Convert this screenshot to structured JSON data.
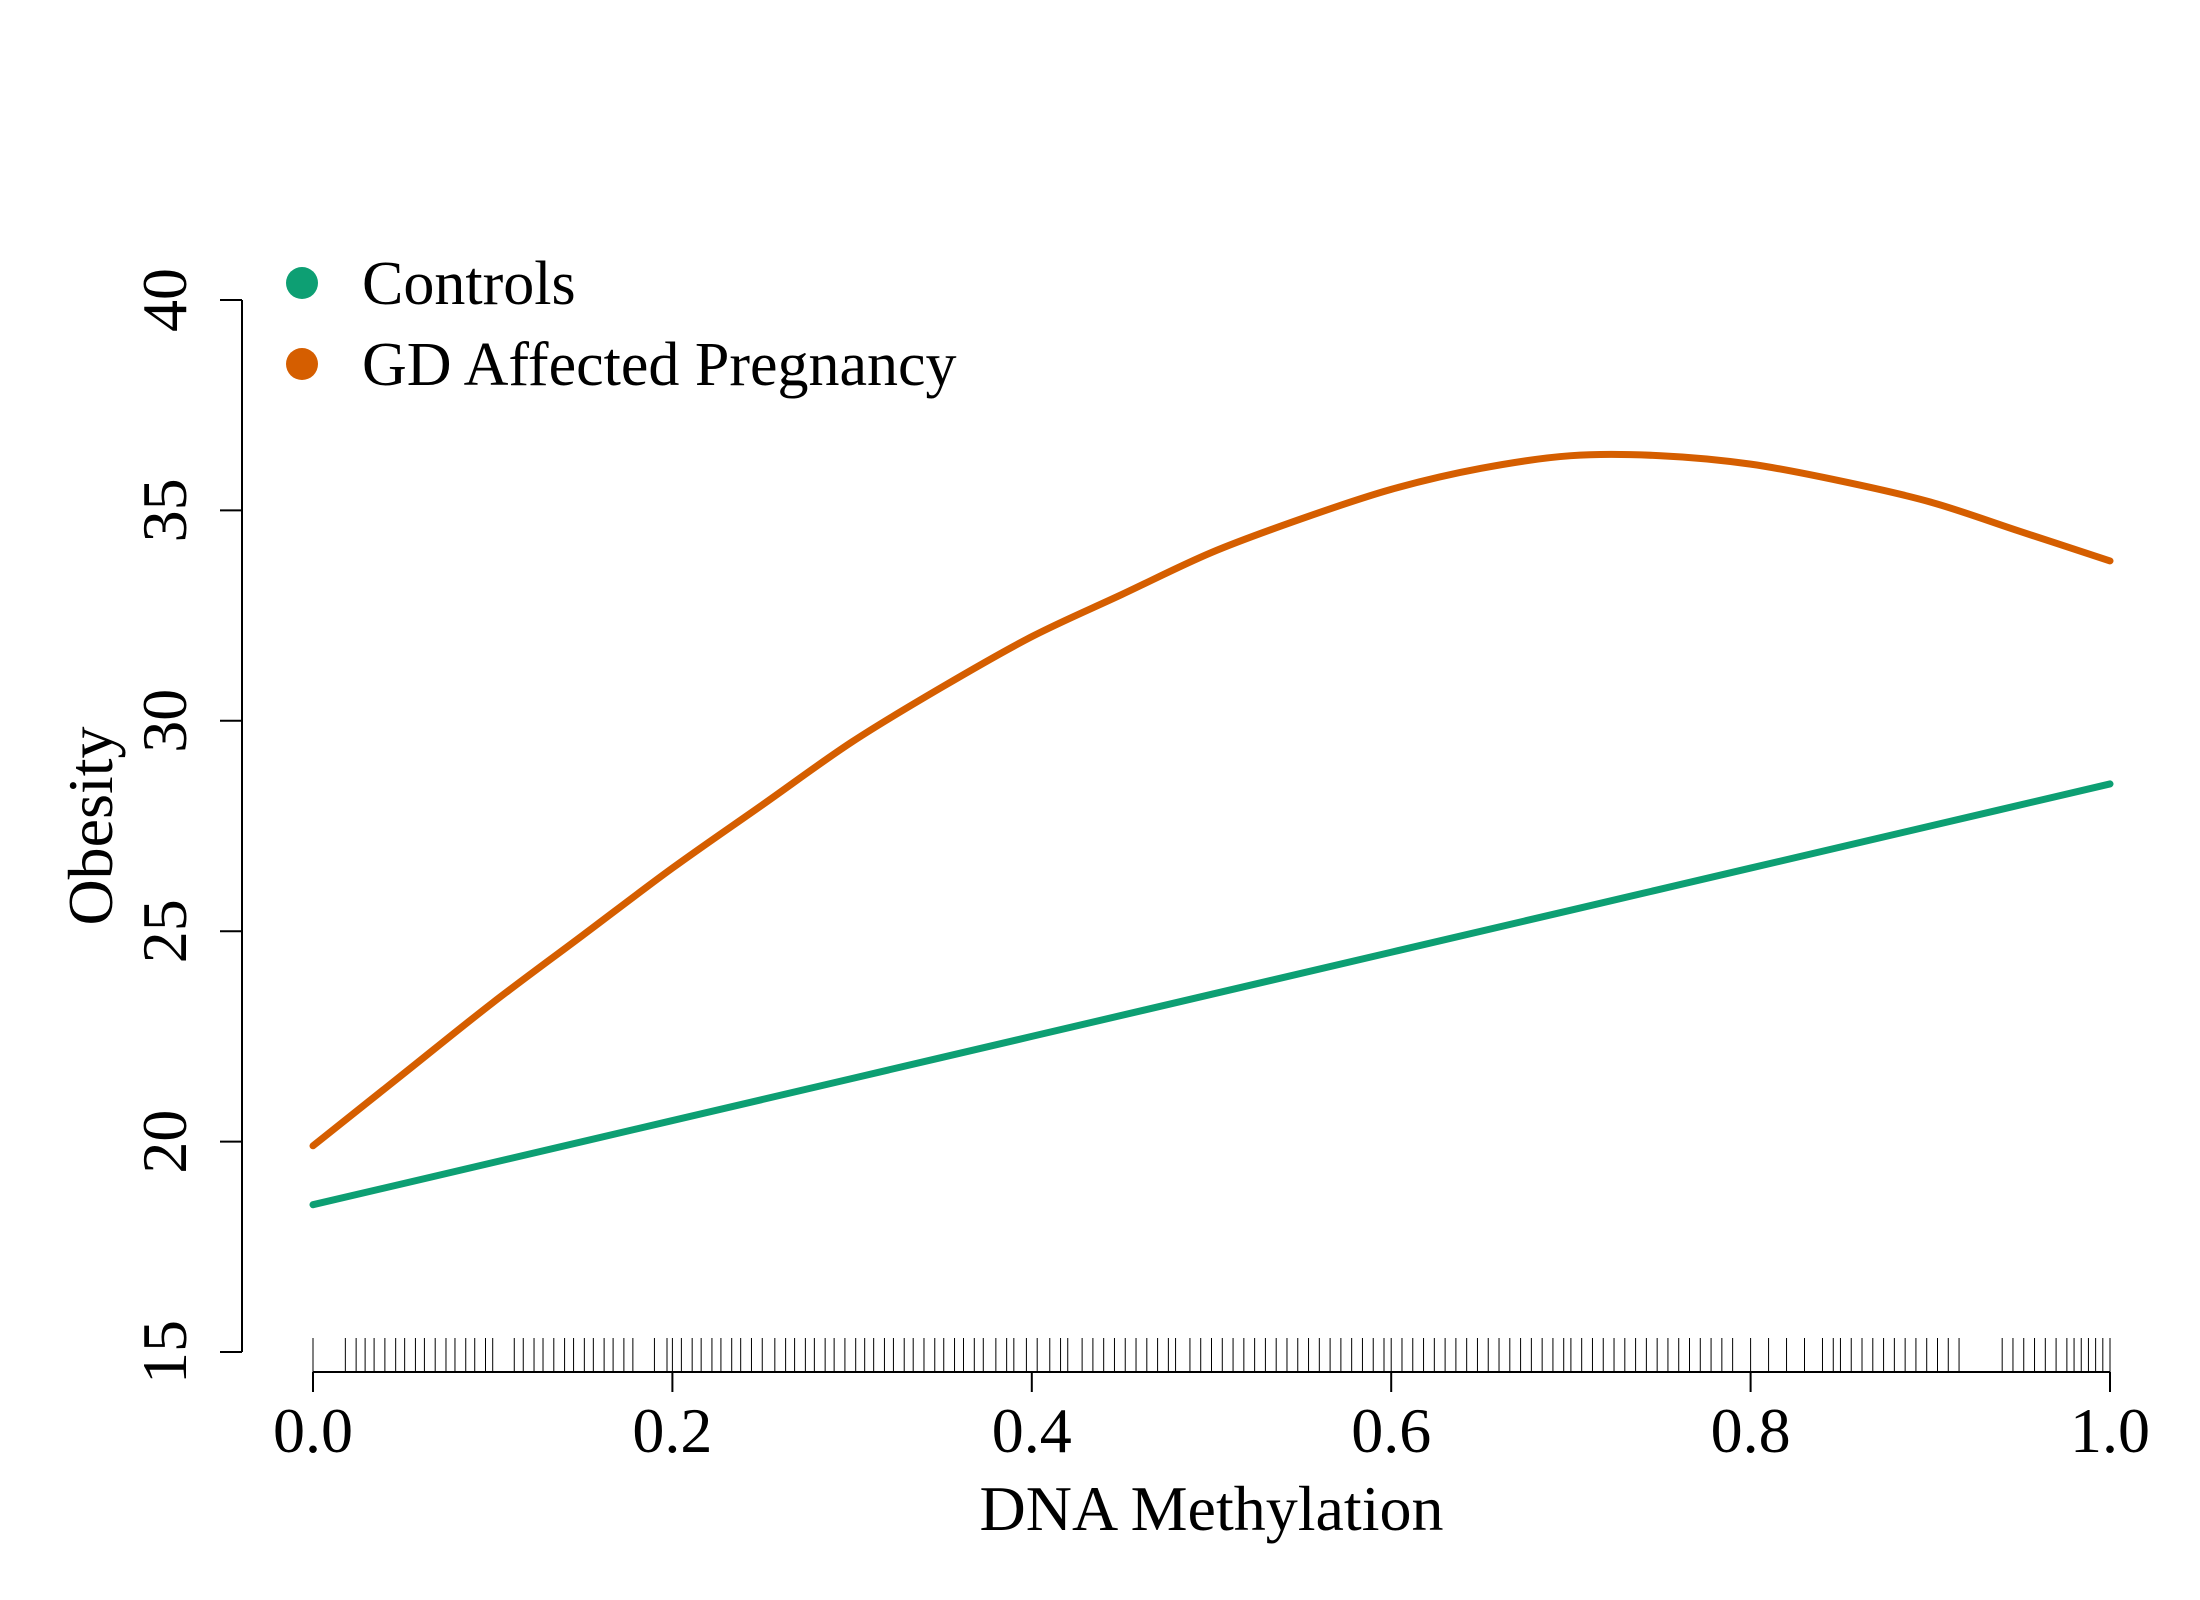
{
  "chart_data": {
    "type": "line",
    "xlabel": "DNA Methylation",
    "ylabel": "Obesity",
    "xlim": [
      0.0,
      1.0
    ],
    "ylim": [
      15,
      40
    ],
    "xticks": [
      "0.0",
      "0.2",
      "0.4",
      "0.6",
      "0.8",
      "1.0"
    ],
    "yticks": [
      "15",
      "20",
      "25",
      "30",
      "35",
      "40"
    ],
    "legend_position": "top-left",
    "series": [
      {
        "name": "Controls",
        "color": "#0D9F73",
        "x": [
          0.0,
          0.1,
          0.2,
          0.3,
          0.4,
          0.5,
          0.6,
          0.7,
          0.8,
          0.9,
          1.0
        ],
        "y": [
          18.5,
          19.5,
          20.5,
          21.5,
          22.5,
          23.5,
          24.5,
          25.5,
          26.5,
          27.5,
          28.5
        ]
      },
      {
        "name": "GD Affected Pregnancy",
        "color": "#D55E00",
        "x": [
          0.0,
          0.05,
          0.1,
          0.15,
          0.2,
          0.25,
          0.3,
          0.35,
          0.4,
          0.45,
          0.5,
          0.55,
          0.6,
          0.65,
          0.7,
          0.75,
          0.8,
          0.85,
          0.9,
          0.95,
          1.0
        ],
        "y": [
          19.9,
          21.6,
          23.3,
          24.9,
          26.5,
          28.0,
          29.5,
          30.8,
          32.0,
          33.0,
          34.0,
          34.8,
          35.5,
          36.0,
          36.3,
          36.3,
          36.1,
          35.7,
          35.2,
          34.5,
          33.8
        ]
      }
    ],
    "rug": [
      0.0,
      0.018,
      0.024,
      0.029,
      0.034,
      0.04,
      0.046,
      0.051,
      0.057,
      0.062,
      0.068,
      0.074,
      0.079,
      0.085,
      0.09,
      0.096,
      0.1,
      0.112,
      0.117,
      0.123,
      0.128,
      0.134,
      0.14,
      0.145,
      0.151,
      0.156,
      0.162,
      0.167,
      0.173,
      0.178,
      0.19,
      0.197,
      0.2,
      0.205,
      0.211,
      0.216,
      0.222,
      0.227,
      0.233,
      0.238,
      0.244,
      0.25,
      0.257,
      0.263,
      0.268,
      0.274,
      0.279,
      0.285,
      0.29,
      0.296,
      0.302,
      0.307,
      0.312,
      0.318,
      0.323,
      0.329,
      0.334,
      0.34,
      0.346,
      0.351,
      0.357,
      0.362,
      0.368,
      0.373,
      0.38,
      0.386,
      0.39,
      0.397,
      0.403,
      0.41,
      0.416,
      0.42,
      0.428,
      0.434,
      0.44,
      0.446,
      0.452,
      0.458,
      0.464,
      0.47,
      0.476,
      0.48,
      0.488,
      0.494,
      0.5,
      0.506,
      0.512,
      0.518,
      0.524,
      0.53,
      0.536,
      0.542,
      0.548,
      0.554,
      0.56,
      0.566,
      0.572,
      0.578,
      0.584,
      0.59,
      0.596,
      0.6,
      0.606,
      0.612,
      0.618,
      0.624,
      0.63,
      0.636,
      0.642,
      0.648,
      0.654,
      0.66,
      0.666,
      0.672,
      0.678,
      0.684,
      0.69,
      0.696,
      0.7,
      0.706,
      0.712,
      0.718,
      0.724,
      0.73,
      0.736,
      0.742,
      0.748,
      0.754,
      0.76,
      0.766,
      0.772,
      0.778,
      0.784,
      0.79,
      0.8,
      0.81,
      0.82,
      0.83,
      0.84,
      0.846,
      0.85,
      0.856,
      0.862,
      0.868,
      0.874,
      0.88,
      0.886,
      0.892,
      0.898,
      0.904,
      0.91,
      0.916,
      0.94,
      0.946,
      0.952,
      0.958,
      0.964,
      0.97,
      0.976,
      0.98,
      0.984,
      0.988,
      0.992,
      0.996,
      1.0
    ]
  }
}
